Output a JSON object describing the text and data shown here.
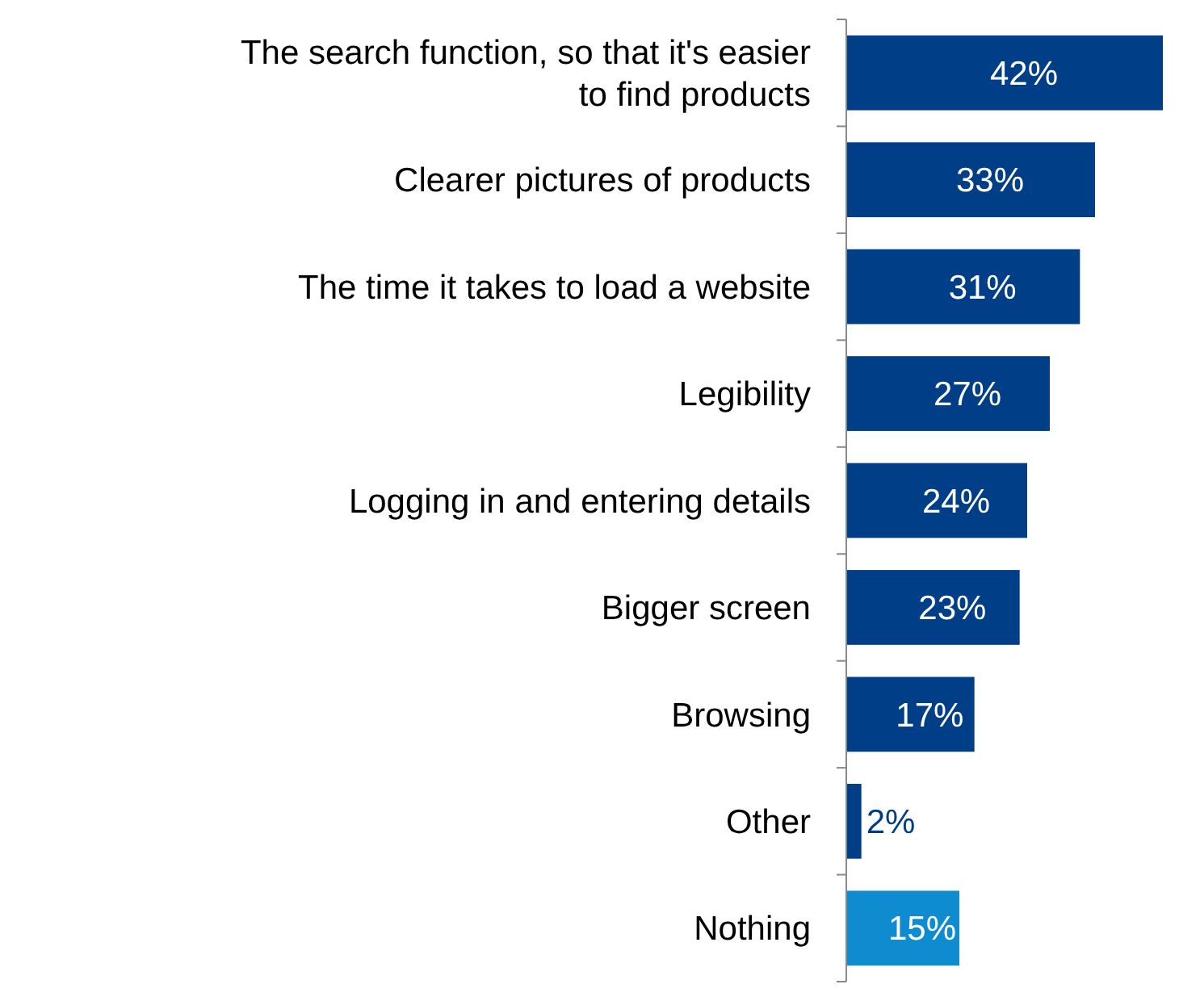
{
  "chart_data": {
    "type": "bar",
    "orientation": "horizontal",
    "categories": [
      "The search function, so that it's easier to find products",
      "Clearer pictures of products",
      "The time it takes to load a website",
      "Legibility",
      "Logging in and entering details",
      "Bigger screen",
      "Browsing",
      "Other",
      "Nothing"
    ],
    "values": [
      42,
      33,
      31,
      27,
      24,
      23,
      17,
      2,
      15
    ],
    "colors": [
      "#003f87",
      "#003f87",
      "#003f87",
      "#003f87",
      "#003f87",
      "#003f87",
      "#003f87",
      "#003f87",
      "#0f8bd0"
    ],
    "value_labels": [
      "42%",
      "33%",
      "31%",
      "27%",
      "24%",
      "23%",
      "17%",
      "2%",
      "15%"
    ]
  }
}
